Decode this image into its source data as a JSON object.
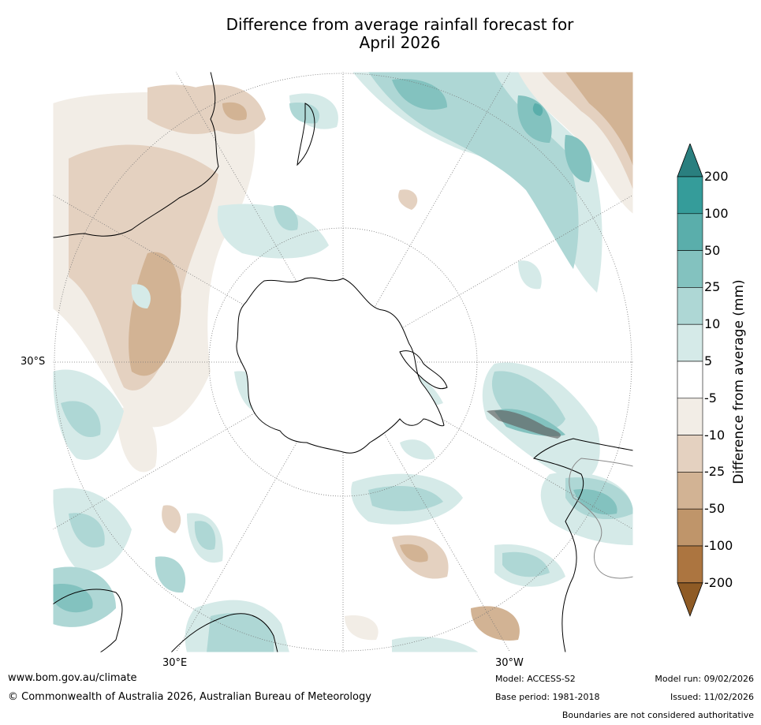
{
  "title_line1": "Difference from average rainfall forecast for",
  "title_line2": "April 2026",
  "axis_labels": {
    "lat_left": "30°S",
    "lon_left": "30°E",
    "lon_right": "30°W"
  },
  "legend": {
    "title": "Difference from average (mm)",
    "ticks": [
      "200",
      "100",
      "50",
      "25",
      "10",
      "5",
      "-5",
      "-10",
      "-25",
      "-50",
      "-100",
      "-200"
    ],
    "colors": [
      "#2a7f7f",
      "#359c9a",
      "#5aaeab",
      "#83c2bf",
      "#aed7d5",
      "#d5eae8",
      "#ffffff",
      "#f2ede6",
      "#e4d1c0",
      "#d2b394",
      "#bf956a",
      "#ac7540",
      "#8f5b25"
    ]
  },
  "footer": {
    "url": "www.bom.gov.au/climate",
    "copyright": "© Commonwealth of Australia 2026, Australian Bureau of Meteorology",
    "model": "Model: ACCESS-S2",
    "base_period": "Base period: 1981-2018",
    "model_run": "Model run: 09/02/2026",
    "issued": "Issued: 11/02/2026",
    "disclaimer": "Boundaries are not considered authoritative"
  }
}
